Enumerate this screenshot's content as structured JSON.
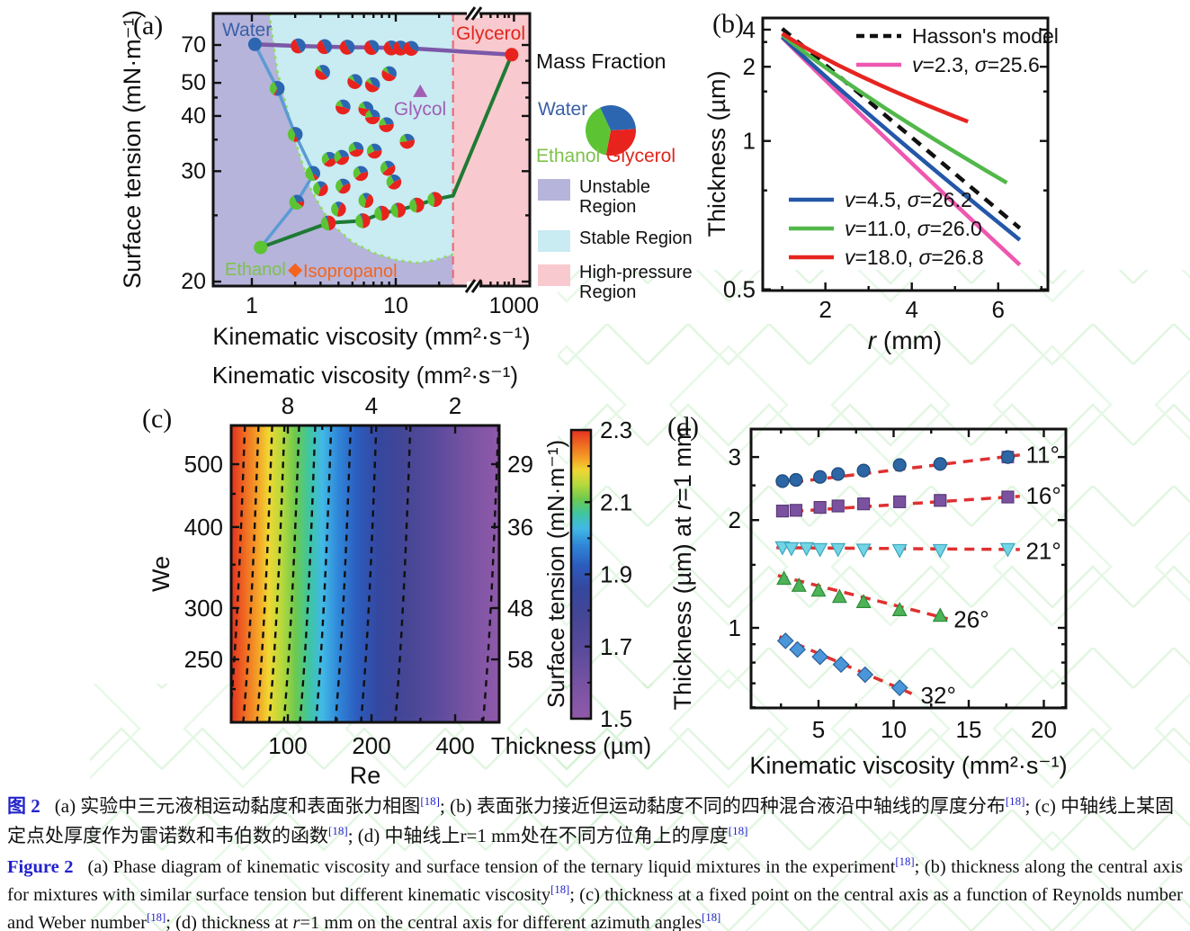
{
  "caption": {
    "zh_label": "图 2",
    "zh_text": "(a) 实验中三元液相运动黏度和表面张力相图[18]; (b) 表面张力接近但运动黏度不同的四种混合液沿中轴线的厚度分布[18]; (c) 中轴线上某固定点处厚度作为雷诺数和韦伯数的函数[18]; (d) 中轴线上r=1 mm处在不同方位角上的厚度[18]",
    "en_label": "Figure 2",
    "en_text": "(a) Phase diagram of kinematic viscosity and surface tension of the ternary liquid mixtures in the experiment[18]; (b) thickness along the central axis for mixtures with similar surface tension but different kinematic viscosity[18]; (c) thickness at a fixed point on the central axis as a function of Reynolds number and Weber number[18]; (d) thickness at r=1 mm on the central axis for different azimuth angles[18]"
  },
  "chart_data": [
    {
      "type": "scatter",
      "panel_label": "(a)",
      "xlabel": "Kinematic viscosity (mm²·s⁻¹)",
      "ylabel": "Surface tension (mN·m⁻¹)",
      "x_ticks": [
        1,
        10,
        1000
      ],
      "x_minor": [
        2,
        3,
        4,
        5,
        6,
        7,
        8,
        9,
        20,
        40,
        100,
        200,
        400,
        600
      ],
      "y_ticks": [
        70,
        50,
        40,
        30,
        20
      ],
      "y_minor": [
        60,
        45,
        35,
        25
      ],
      "xlim_note": "log scale with axis break between 30 and 1000",
      "regions": [
        {
          "name": "Unstable Region",
          "color": "#b6b4da"
        },
        {
          "name": "Stable Region",
          "color": "#c9ebf2"
        },
        {
          "name": "High-pressure Region",
          "color": "#f8c9ce"
        }
      ],
      "divider_x": 25,
      "divider_color": "#f06878",
      "boundary_color": "#8fdc5a",
      "stability_boundary": [
        [
          1.32,
          105
        ],
        [
          1.5,
          55
        ],
        [
          1.75,
          42
        ],
        [
          2.1,
          33
        ],
        [
          2.6,
          27.5
        ],
        [
          3.5,
          24.3
        ],
        [
          5,
          22.7
        ],
        [
          7,
          21.9
        ],
        [
          10,
          21.4
        ],
        [
          14,
          21.2
        ],
        [
          19,
          21.4
        ],
        [
          25,
          21.8
        ]
      ],
      "named_points": {
        "water": {
          "label": "Water",
          "x": 1.05,
          "y": 70.5,
          "color": "#2d66b0",
          "marker": "circle"
        },
        "glycerol": {
          "label": "Glycerol",
          "x": 800,
          "y": 63.5,
          "color": "#e8231e",
          "marker": "circle"
        },
        "ethanol": {
          "label": "Ethanol",
          "x": 1.15,
          "y": 22.3,
          "color": "#5cc433",
          "marker": "circle"
        },
        "glycol": {
          "label": "Glycol",
          "x": 14.8,
          "y": 46.9,
          "color": "#a05fb4",
          "marker": "triangle"
        },
        "isopropanol": {
          "label": "Isopropanol",
          "x": 2.0,
          "y": 20.7,
          "color": "#f4641e",
          "marker": "diamond"
        }
      },
      "lines": [
        {
          "name": "water-dilution-line",
          "color": "#5b9bd5",
          "width": 3.5,
          "points": [
            [
              1.05,
              70.5
            ],
            [
              1.5,
              48
            ],
            [
              2.0,
              36
            ],
            [
              2.7,
              29.7
            ],
            [
              2.05,
              26.3
            ],
            [
              1.15,
              22.3
            ]
          ]
        },
        {
          "name": "ethanol-glycerol-line",
          "color": "#1e7a34",
          "width": 4,
          "points": [
            [
              1.15,
              22.3
            ],
            [
              3.4,
              24.3
            ],
            [
              5.9,
              24.5
            ],
            [
              8.0,
              25.2
            ],
            [
              10.4,
              25.5
            ],
            [
              14,
              26.0
            ],
            [
              18.7,
              26.6
            ],
            [
              25,
              27.0
            ],
            [
              800,
              63.5
            ]
          ]
        },
        {
          "name": "water-glycerol-line",
          "color": "#7b58a8",
          "width": 4.5,
          "points": [
            [
              1.05,
              70.5
            ],
            [
              2.1,
              69.3
            ],
            [
              3.2,
              68.8
            ],
            [
              4.6,
              68.4
            ],
            [
              6.8,
              68.2
            ],
            [
              9.3,
              67.9
            ],
            [
              10.8,
              67.8
            ],
            [
              12.8,
              67.6
            ],
            [
              800,
              63.5
            ]
          ]
        }
      ],
      "pie_colors": {
        "water": "#2d66b0",
        "glycerol": "#e8231e",
        "ethanol": "#5cc433"
      },
      "pies": [
        [
          2.1,
          69.3,
          0.5,
          0.5,
          0
        ],
        [
          3.2,
          68.8,
          0.5,
          0.5,
          0
        ],
        [
          4.6,
          68.4,
          0.48,
          0.52,
          0
        ],
        [
          6.8,
          68.2,
          0.45,
          0.55,
          0
        ],
        [
          9.3,
          67.9,
          0.45,
          0.55,
          0
        ],
        [
          10.8,
          67.8,
          0.42,
          0.58,
          0
        ],
        [
          12.8,
          67.6,
          0.4,
          0.6,
          0
        ],
        [
          1.5,
          48,
          0.6,
          0.05,
          0.35
        ],
        [
          2.0,
          36,
          0.5,
          0.1,
          0.4
        ],
        [
          2.65,
          29.7,
          0.42,
          0.1,
          0.48
        ],
        [
          2.05,
          26.3,
          0.3,
          0.12,
          0.58
        ],
        [
          3.1,
          54.3,
          0.45,
          0.45,
          0.1
        ],
        [
          5.2,
          50.5,
          0.42,
          0.48,
          0.1
        ],
        [
          6.9,
          49.3,
          0.4,
          0.5,
          0.1
        ],
        [
          9.0,
          53.7,
          0.4,
          0.5,
          0.1
        ],
        [
          4.3,
          42.3,
          0.38,
          0.47,
          0.15
        ],
        [
          6.2,
          41.8,
          0.36,
          0.49,
          0.15
        ],
        [
          6.9,
          39.8,
          0.33,
          0.47,
          0.2
        ],
        [
          8.6,
          38.0,
          0.3,
          0.5,
          0.2
        ],
        [
          12.0,
          34.7,
          0.28,
          0.52,
          0.2
        ],
        [
          5.3,
          33.3,
          0.33,
          0.42,
          0.25
        ],
        [
          3.45,
          31.7,
          0.3,
          0.4,
          0.3
        ],
        [
          7.1,
          33.0,
          0.3,
          0.45,
          0.25
        ],
        [
          5.7,
          29.7,
          0.28,
          0.42,
          0.3
        ],
        [
          4.2,
          32.0,
          0.3,
          0.4,
          0.3
        ],
        [
          8.8,
          30.4,
          0.25,
          0.45,
          0.3
        ],
        [
          9.7,
          28.6,
          0.25,
          0.45,
          0.3
        ],
        [
          4.3,
          28.1,
          0.25,
          0.42,
          0.33
        ],
        [
          6.2,
          26.5,
          0.15,
          0.45,
          0.4
        ],
        [
          4.0,
          25.6,
          0.15,
          0.45,
          0.4
        ],
        [
          3.0,
          27.8,
          0.2,
          0.42,
          0.38
        ],
        [
          3.4,
          24.3,
          0.05,
          0.5,
          0.45
        ],
        [
          5.9,
          24.5,
          0.05,
          0.52,
          0.43
        ],
        [
          8.0,
          25.2,
          0.04,
          0.53,
          0.43
        ],
        [
          10.4,
          25.5,
          0.03,
          0.55,
          0.42
        ],
        [
          14,
          26.0,
          0.02,
          0.56,
          0.42
        ],
        [
          18.7,
          26.6,
          0.02,
          0.58,
          0.4
        ]
      ],
      "legend": {
        "title": "Mass Fraction",
        "pie_labels": [
          "Water",
          "Ethanol",
          "Glycerol"
        ],
        "pie_fracs": [
          0.31,
          0.4,
          0.29
        ]
      }
    },
    {
      "type": "line",
      "panel_label": "(b)",
      "xlabel_segments": [
        {
          "t": "r",
          "i": true
        },
        {
          "t": " (mm)"
        }
      ],
      "ylabel": "Thickness (µm)",
      "x_ticks": [
        2,
        4,
        6
      ],
      "x_minor": [
        1,
        3,
        5,
        7
      ],
      "y_ticks": [
        4,
        2,
        1,
        0.5
      ],
      "y_minor": [
        3,
        1.5,
        0.75
      ],
      "series": [
        {
          "name": "Hasson's model",
          "color": "#111111",
          "dash": "12 9",
          "x": [
            1,
            6.5
          ],
          "y": [
            4.1,
            0.63
          ]
        },
        {
          "name": "v=2.3, σ=25.6",
          "color": "#ee57b0",
          "dash": "",
          "x": [
            1,
            6.5
          ],
          "y": [
            3.3,
            0.545
          ]
        },
        {
          "name": "v=4.5, σ=26.2",
          "color": "#2457a8",
          "dash": "",
          "x": [
            1,
            6.5
          ],
          "y": [
            3.35,
            0.6
          ]
        },
        {
          "name": "v=11.0, σ=26.0",
          "color": "#52b84a",
          "dash": "",
          "x": [
            1,
            6.2
          ],
          "y": [
            3.5,
            0.78
          ]
        },
        {
          "name": "v=18.0, σ=26.8",
          "color": "#e62520",
          "dash": "",
          "x": [
            1,
            5.3
          ],
          "y": [
            3.62,
            1.15
          ]
        }
      ],
      "legend_top": [
        0,
        1
      ],
      "legend_bottom": [
        2,
        3,
        4
      ]
    },
    {
      "type": "heatmap",
      "panel_label": "(c)",
      "top_xlabel": "Kinematic viscosity (mm²·s⁻¹)",
      "top_x_ticks": [
        8,
        4,
        2
      ],
      "xlabel": "Re",
      "x_ticks": [
        100,
        200,
        400
      ],
      "x_minor": [
        150,
        300,
        500
      ],
      "ylabel": "We",
      "y_ticks": [
        500,
        400,
        300,
        250
      ],
      "y_minor": [
        450,
        350,
        225
      ],
      "right_ylabel": "Surface tension (mN·m⁻¹)",
      "right_y_ticks": [
        29,
        36,
        48,
        58
      ],
      "x_range": [
        62,
        590
      ],
      "y_range": [
        200,
        575
      ],
      "contour_levels_Re": [
        67,
        75,
        84,
        93,
        105,
        120,
        137,
        161,
        199,
        264,
        547
      ],
      "palette": [
        [
          "0%",
          "#e33020"
        ],
        [
          "5%",
          "#ef6a22"
        ],
        [
          "10%",
          "#f4a227"
        ],
        [
          "14%",
          "#f0d733"
        ],
        [
          "19%",
          "#b5d93c"
        ],
        [
          "24%",
          "#6cc94f"
        ],
        [
          "29%",
          "#3fc6a0"
        ],
        [
          "34%",
          "#41b9e6"
        ],
        [
          "40%",
          "#2f86d8"
        ],
        [
          "47%",
          "#2c5cbe"
        ],
        [
          "55%",
          "#35479f"
        ],
        [
          "65%",
          "#454695"
        ],
        [
          "77%",
          "#5c4b9c"
        ],
        [
          "89%",
          "#7a53a3"
        ],
        [
          "100%",
          "#9059aa"
        ]
      ],
      "colorbar": {
        "label": "Thickness (µm)",
        "ticks": [
          2.3,
          2.1,
          1.9,
          1.7,
          1.5
        ],
        "minor": [
          2.2,
          2.0,
          1.8,
          1.6
        ],
        "range": [
          1.5,
          2.3
        ]
      }
    },
    {
      "type": "scatter",
      "panel_label": "(d)",
      "xlabel": "Kinematic viscosity (mm²·s⁻¹)",
      "ylabel_segments": [
        {
          "t": "Thickness (µm) at "
        },
        {
          "t": "r",
          "i": true
        },
        {
          "t": "=1 mm"
        }
      ],
      "x_ticks": [
        5,
        10,
        15,
        20
      ],
      "x_minor": [
        2.5,
        7.5,
        12.5,
        17.5
      ],
      "y_ticks": [
        3,
        2,
        1
      ],
      "y_minor": [
        2.5,
        1.5,
        0.9,
        0.8,
        0.7,
        0.6
      ],
      "trend_color": "#e03030",
      "series": [
        {
          "angle": "11°",
          "marker": "circle",
          "color": "#2d66a5",
          "edge": "#1b4a7a",
          "x": [
            2.6,
            3.5,
            5.1,
            6.3,
            8,
            10.4,
            13.1,
            17.6
          ],
          "y": [
            2.57,
            2.59,
            2.64,
            2.69,
            2.75,
            2.85,
            2.87,
            3.0
          ],
          "trend": [
            [
              2.2,
              2.52
            ],
            [
              18.4,
              3.04
            ]
          ],
          "label_at": [
            18.8,
            3.03
          ],
          "combo_last": true
        },
        {
          "angle": "16°",
          "marker": "square",
          "color": "#7b52a0",
          "edge": "#5a3a78",
          "x": [
            2.6,
            3.5,
            5.1,
            6.3,
            8,
            10.4,
            13.1,
            17.6
          ],
          "y": [
            2.12,
            2.13,
            2.17,
            2.19,
            2.22,
            2.25,
            2.27,
            2.32
          ],
          "trend": [
            [
              2.2,
              2.1
            ],
            [
              18.4,
              2.33
            ]
          ],
          "label_at": [
            18.8,
            2.33
          ]
        },
        {
          "angle": "21°",
          "marker": "tri-down",
          "color": "#72d4e4",
          "edge": "#3aa8c0",
          "x": [
            2.6,
            3.2,
            4.2,
            5.1,
            6.3,
            8,
            10.4,
            13.1,
            17.6
          ],
          "y": [
            1.68,
            1.67,
            1.67,
            1.66,
            1.66,
            1.655,
            1.65,
            1.65,
            1.66
          ],
          "trend": [
            [
              2.2,
              1.675
            ],
            [
              18.4,
              1.655
            ]
          ],
          "label_at": [
            18.8,
            1.63
          ]
        },
        {
          "angle": "26°",
          "marker": "tri-up",
          "color": "#4db357",
          "edge": "#2e8b3a",
          "x": [
            2.7,
            3.7,
            5,
            6.4,
            8,
            10.4,
            13.1
          ],
          "y": [
            1.37,
            1.31,
            1.27,
            1.22,
            1.18,
            1.12,
            1.08
          ],
          "trend": [
            [
              2.3,
              1.4
            ],
            [
              13.6,
              1.06
            ]
          ],
          "label_at": [
            14.0,
            1.05
          ]
        },
        {
          "angle": "32°",
          "marker": "diamond",
          "color": "#4a96d8",
          "edge": "#2a6099",
          "x": [
            2.8,
            3.6,
            5.1,
            6.5,
            8.1,
            10.4
          ],
          "y": [
            0.92,
            0.87,
            0.83,
            0.79,
            0.74,
            0.68
          ],
          "trend": [
            [
              2.4,
              0.945
            ],
            [
              11.2,
              0.655
            ]
          ],
          "label_at": [
            11.8,
            0.645
          ]
        }
      ]
    }
  ]
}
